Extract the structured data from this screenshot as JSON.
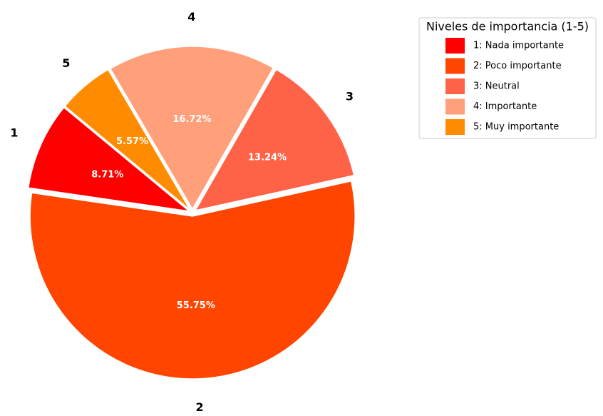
{
  "chart_data": {
    "type": "pie",
    "categories": [
      "1",
      "2",
      "3",
      "4",
      "5"
    ],
    "values": [
      8.71,
      55.75,
      13.24,
      16.72,
      5.57
    ],
    "value_labels": [
      "8.71%",
      "55.75%",
      "13.24%",
      "16.72%",
      "5.57%"
    ],
    "colors": [
      "#ff0000",
      "#ff4500",
      "#ff6347",
      "#ffa07a",
      "#ff8c00"
    ],
    "legend_title": "Niveles de importancia (1-5)",
    "legend_labels": [
      "1: Nada importante",
      "2: Poco importante",
      "3: Neutral",
      "4: Importante",
      "5: Muy importante"
    ],
    "legend_position": "upper right"
  }
}
